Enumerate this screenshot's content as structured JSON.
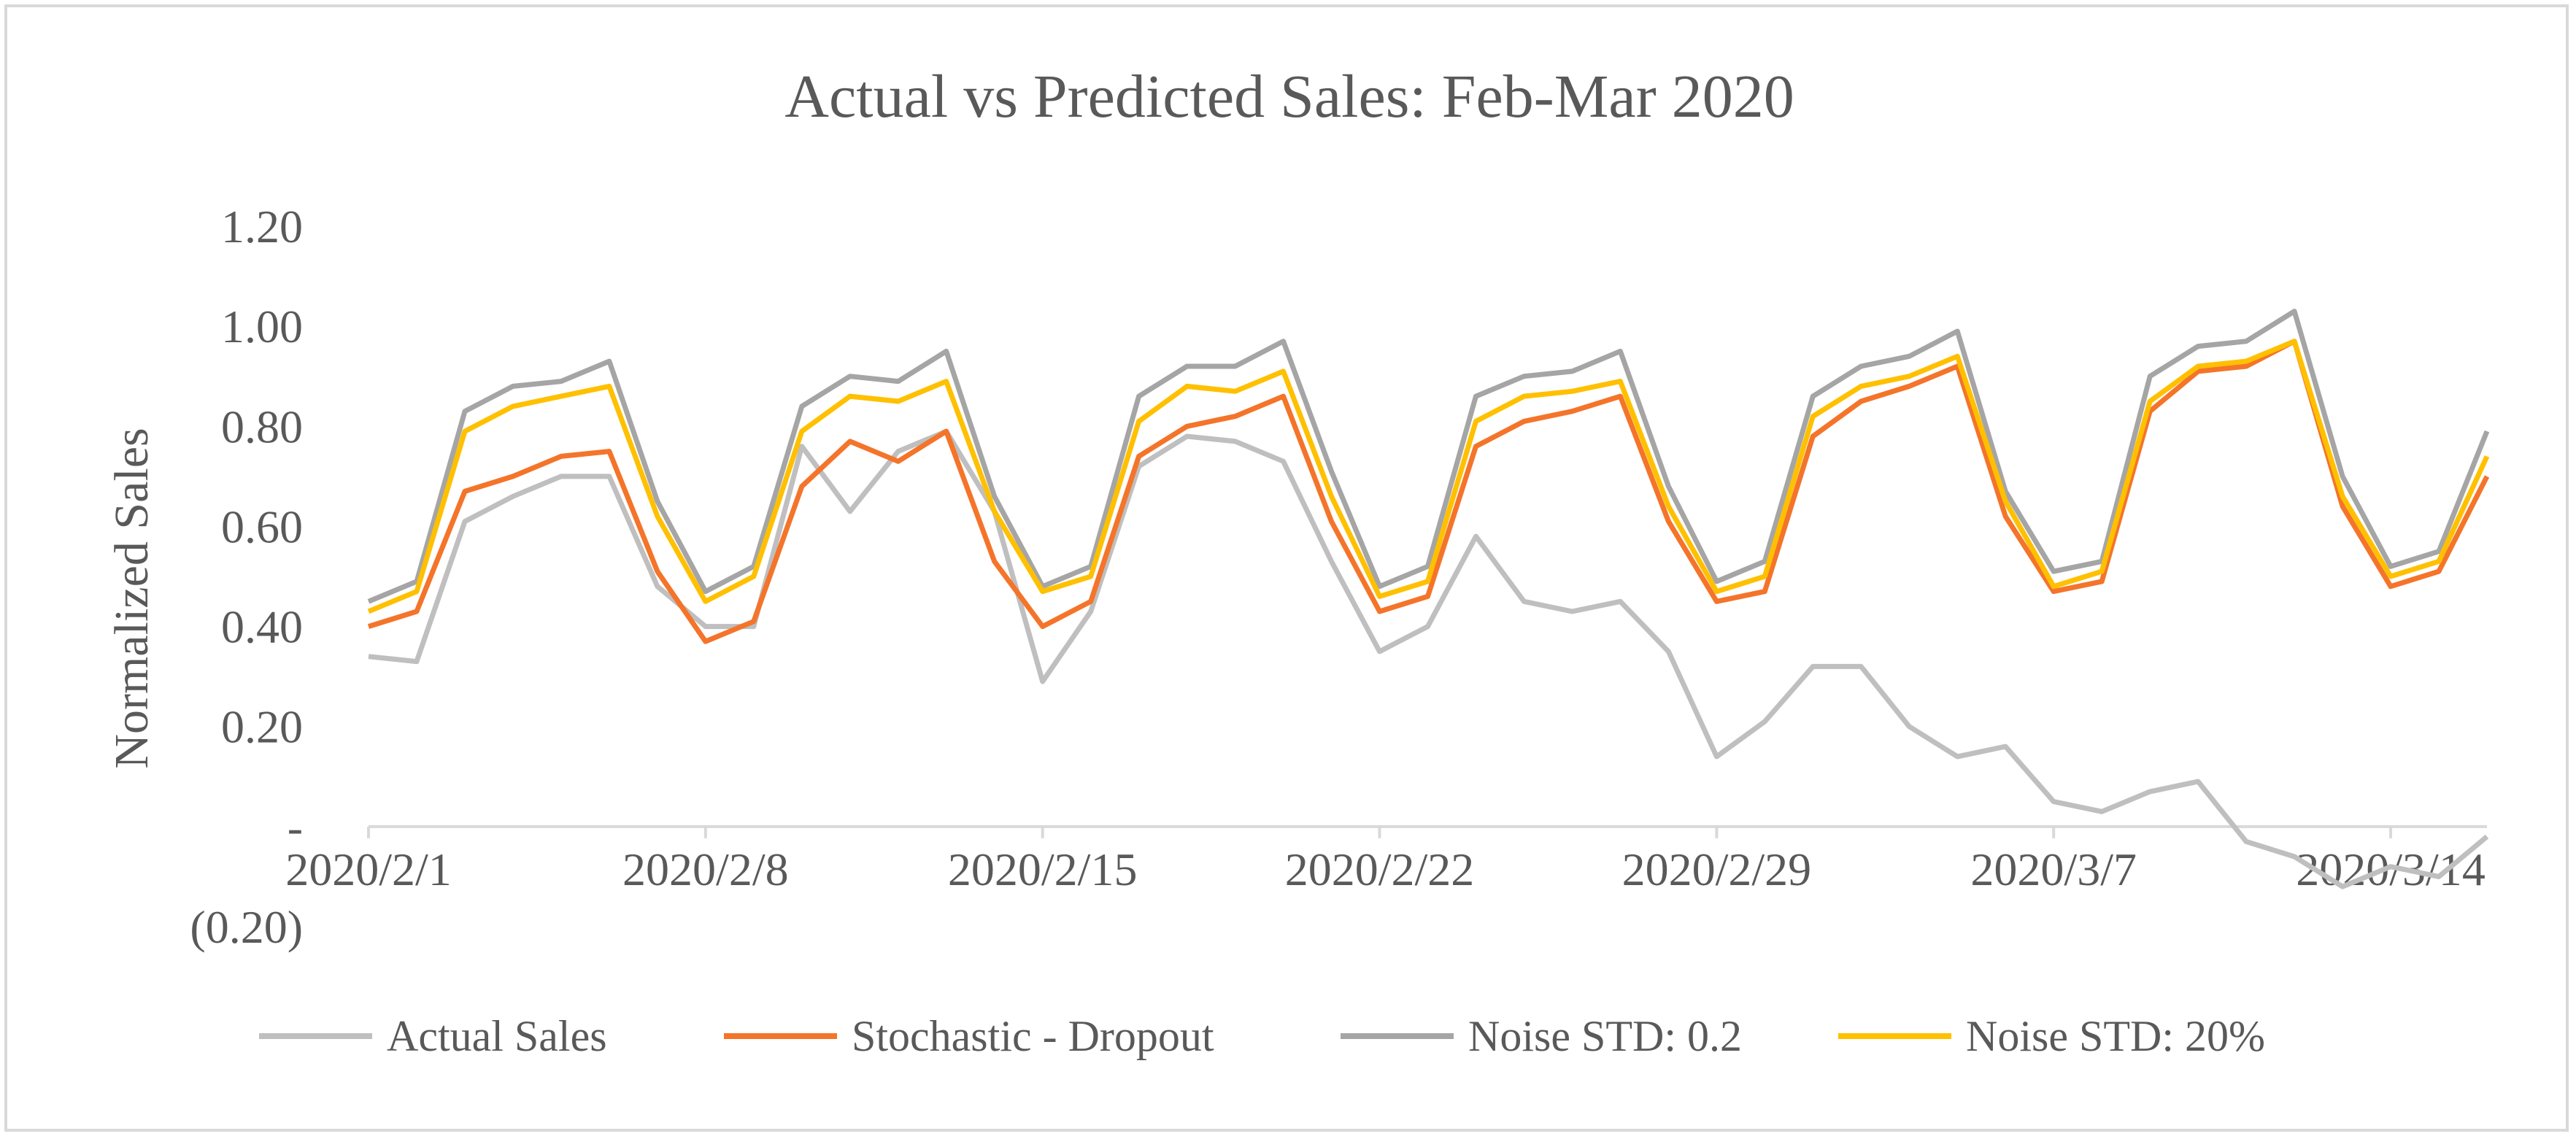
{
  "chart_data": {
    "type": "line",
    "title": "Actual vs Predicted Sales: Feb-Mar 2020",
    "xlabel": "",
    "ylabel": "Normalized Sales",
    "ylim": [
      -0.2,
      1.2
    ],
    "y_ticks": [
      {
        "value": 1.2,
        "label": "1.20"
      },
      {
        "value": 1.0,
        "label": "1.00"
      },
      {
        "value": 0.8,
        "label": "0.80"
      },
      {
        "value": 0.6,
        "label": "0.60"
      },
      {
        "value": 0.4,
        "label": "0.40"
      },
      {
        "value": 0.2,
        "label": "0.20"
      },
      {
        "value": 0.0,
        "label": "-"
      },
      {
        "value": -0.2,
        "label": "(0.20)"
      }
    ],
    "x_tick_labels": [
      {
        "index": 0,
        "label": "2020/2/1"
      },
      {
        "index": 7,
        "label": "2020/2/8"
      },
      {
        "index": 14,
        "label": "2020/2/15"
      },
      {
        "index": 21,
        "label": "2020/2/22"
      },
      {
        "index": 28,
        "label": "2020/2/29"
      },
      {
        "index": 35,
        "label": "2020/3/7"
      },
      {
        "index": 42,
        "label": "2020/3/14"
      }
    ],
    "num_points": 45,
    "legend_position": "bottom",
    "series": [
      {
        "name": "Actual Sales",
        "color": "#bfbfbf",
        "values": [
          0.34,
          0.33,
          0.61,
          0.66,
          0.7,
          0.7,
          0.48,
          0.4,
          0.4,
          0.76,
          0.63,
          0.75,
          0.79,
          0.63,
          0.29,
          0.43,
          0.72,
          0.78,
          0.77,
          0.73,
          0.53,
          0.35,
          0.4,
          0.58,
          0.45,
          0.43,
          0.45,
          0.35,
          0.14,
          0.21,
          0.32,
          0.32,
          0.2,
          0.14,
          0.16,
          0.05,
          0.03,
          0.07,
          0.09,
          -0.03,
          -0.06,
          -0.12,
          -0.08,
          -0.1,
          -0.02
        ]
      },
      {
        "name": "Stochastic - Dropout",
        "color": "#f4742a",
        "values": [
          0.4,
          0.43,
          0.67,
          0.7,
          0.74,
          0.75,
          0.51,
          0.37,
          0.41,
          0.68,
          0.77,
          0.73,
          0.79,
          0.53,
          0.4,
          0.45,
          0.74,
          0.8,
          0.82,
          0.86,
          0.61,
          0.43,
          0.46,
          0.76,
          0.81,
          0.83,
          0.86,
          0.61,
          0.45,
          0.47,
          0.78,
          0.85,
          0.88,
          0.92,
          0.62,
          0.47,
          0.49,
          0.83,
          0.91,
          0.92,
          0.97,
          0.64,
          0.48,
          0.51,
          0.7
        ]
      },
      {
        "name": "Noise STD: 0.2",
        "color": "#a5a5a5",
        "values": [
          0.45,
          0.49,
          0.83,
          0.88,
          0.89,
          0.93,
          0.65,
          0.47,
          0.52,
          0.84,
          0.9,
          0.89,
          0.95,
          0.66,
          0.48,
          0.52,
          0.86,
          0.92,
          0.92,
          0.97,
          0.71,
          0.48,
          0.52,
          0.86,
          0.9,
          0.91,
          0.95,
          0.68,
          0.49,
          0.53,
          0.86,
          0.92,
          0.94,
          0.99,
          0.67,
          0.51,
          0.53,
          0.9,
          0.96,
          0.97,
          1.03,
          0.7,
          0.52,
          0.55,
          0.79
        ]
      },
      {
        "name": "Noise STD: 20%",
        "color": "#ffc000",
        "values": [
          0.43,
          0.47,
          0.79,
          0.84,
          0.86,
          0.88,
          0.62,
          0.45,
          0.5,
          0.79,
          0.86,
          0.85,
          0.89,
          0.63,
          0.47,
          0.5,
          0.81,
          0.88,
          0.87,
          0.91,
          0.66,
          0.46,
          0.49,
          0.81,
          0.86,
          0.87,
          0.89,
          0.64,
          0.47,
          0.5,
          0.82,
          0.88,
          0.9,
          0.94,
          0.65,
          0.48,
          0.51,
          0.85,
          0.92,
          0.93,
          0.97,
          0.66,
          0.5,
          0.53,
          0.74
        ]
      }
    ]
  }
}
